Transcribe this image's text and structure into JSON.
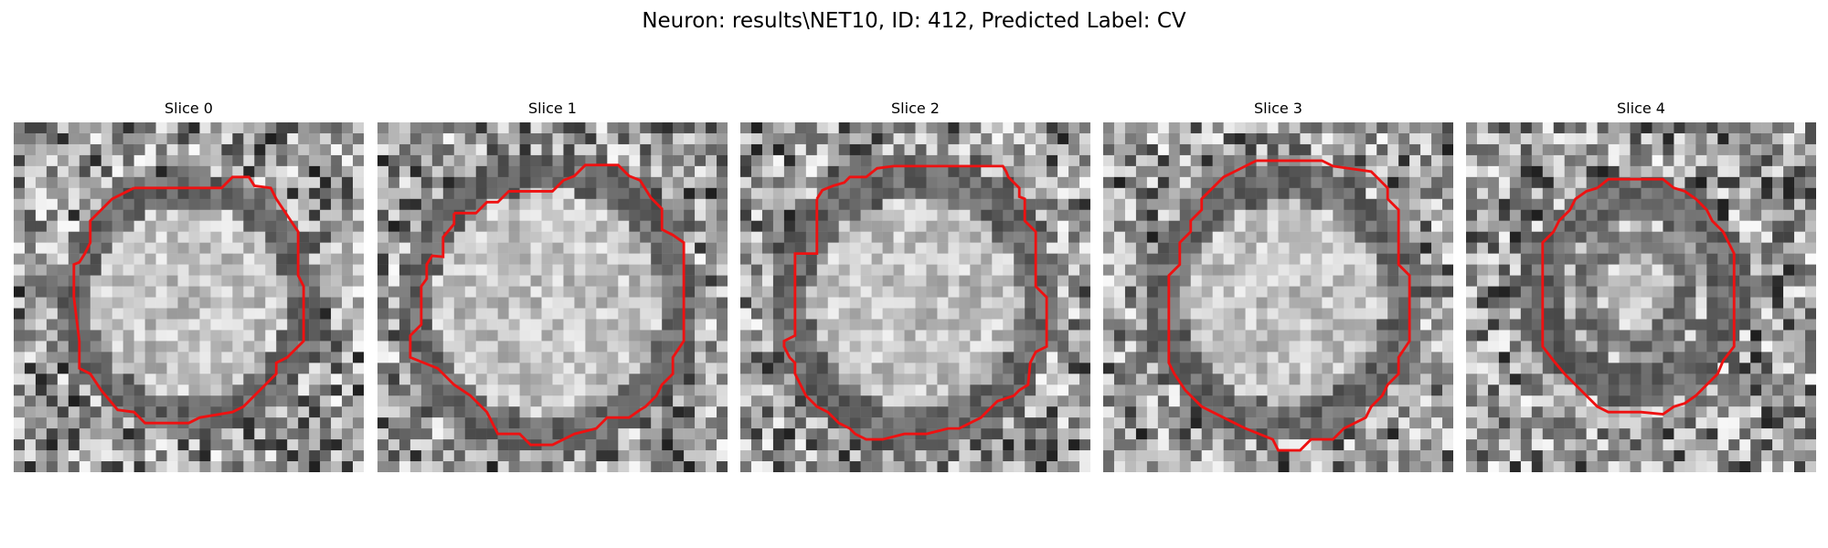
{
  "figure": {
    "title": "Neuron: results\\NET10, ID: 412, Predicted Label: CV"
  },
  "slices": [
    {
      "label": "Slice 0"
    },
    {
      "label": "Slice 1"
    },
    {
      "label": "Slice 2"
    },
    {
      "label": "Slice 3"
    },
    {
      "label": "Slice 4"
    }
  ],
  "colors": {
    "contour": "#ee1111",
    "background": "#ffffff"
  }
}
